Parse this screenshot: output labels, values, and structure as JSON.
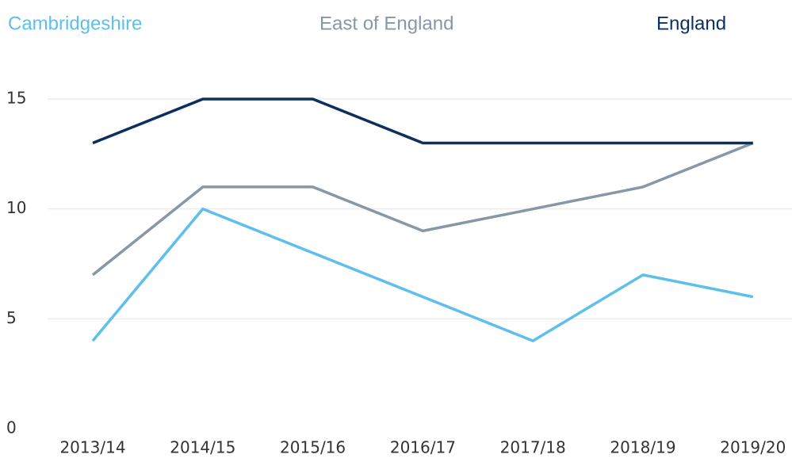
{
  "chart_data": {
    "type": "line",
    "categories": [
      "2013/14",
      "2014/15",
      "2015/16",
      "2016/17",
      "2017/18",
      "2018/19",
      "2019/20"
    ],
    "series": [
      {
        "name": "Cambridgeshire",
        "color": "#5dbfea",
        "values": [
          4,
          10,
          8,
          6,
          4,
          7,
          6
        ]
      },
      {
        "name": "East of England",
        "color": "#8797a6",
        "values": [
          7,
          11,
          11,
          9,
          10,
          11,
          13
        ]
      },
      {
        "name": "England",
        "color": "#0c2f5c",
        "values": [
          13,
          15,
          15,
          13,
          13,
          13,
          13
        ]
      }
    ],
    "ylim": [
      0,
      15
    ],
    "yticks": [
      0,
      5,
      10,
      15
    ],
    "grid": true
  }
}
